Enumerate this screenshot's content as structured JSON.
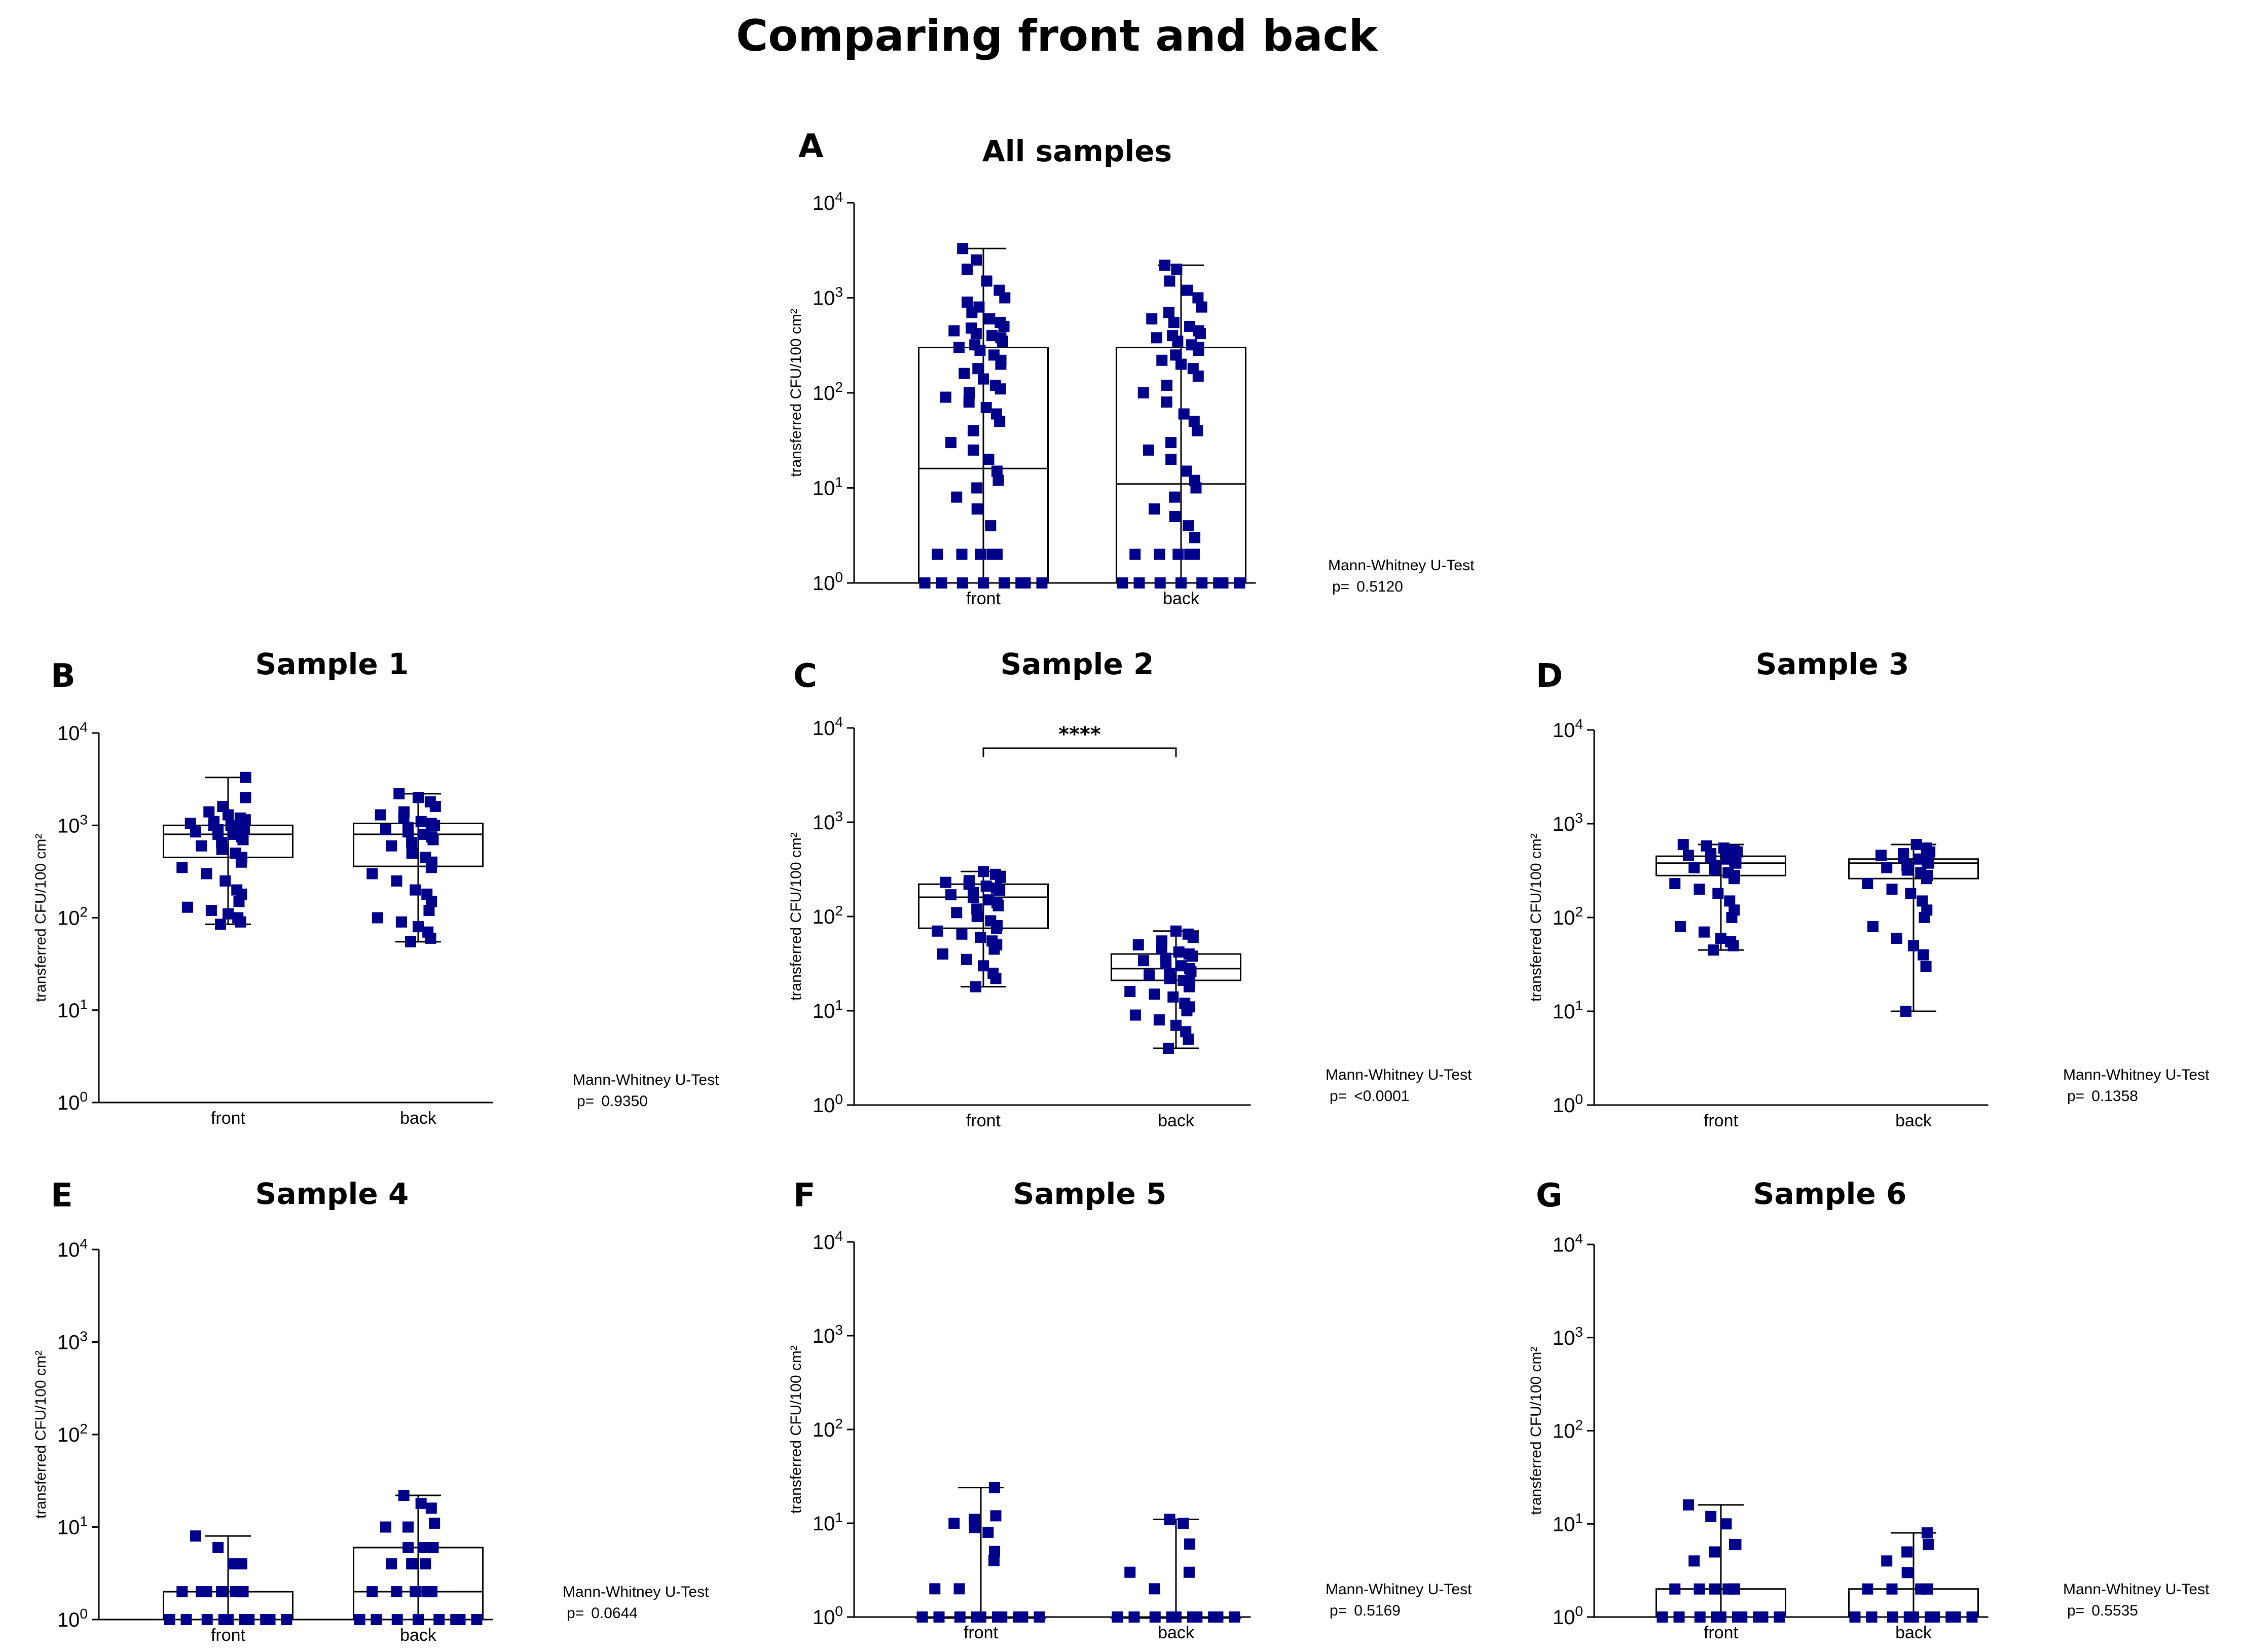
{
  "figure_title": "Comparing front and back",
  "axis_label": "transferred CFU/100 cm²",
  "y_ticks": [
    {
      "base": "10",
      "exp": "0"
    },
    {
      "base": "10",
      "exp": "1"
    },
    {
      "base": "10",
      "exp": "2"
    },
    {
      "base": "10",
      "exp": "3"
    },
    {
      "base": "10",
      "exp": "4"
    }
  ],
  "colors": {
    "points": "#00008B",
    "box": "#000000",
    "text": "#000000"
  },
  "chart_data": [
    {
      "panel": "A",
      "title": "All samples",
      "type": "box",
      "yscale": "log",
      "ylim": [
        1,
        10000
      ],
      "categories": [
        "front",
        "back"
      ],
      "series": [
        {
          "name": "front",
          "box": {
            "min": 1,
            "q1": 1,
            "median": 16,
            "q3": 300,
            "max": 3300
          },
          "points": [
            1,
            1,
            1,
            1,
            1,
            1,
            1,
            1,
            2,
            2,
            2,
            2,
            2,
            2,
            4,
            6,
            8,
            10,
            12,
            15,
            20,
            25,
            30,
            40,
            50,
            60,
            70,
            80,
            90,
            100,
            110,
            120,
            140,
            160,
            180,
            200,
            220,
            250,
            280,
            300,
            320,
            350,
            380,
            400,
            420,
            450,
            480,
            500,
            550,
            600,
            700,
            800,
            900,
            1000,
            1200,
            1500,
            2000,
            2500,
            3300
          ]
        },
        {
          "name": "back",
          "box": {
            "min": 1,
            "q1": 1,
            "median": 11,
            "q3": 300,
            "max": 2200
          },
          "points": [
            1,
            1,
            1,
            1,
            1,
            1,
            1,
            1,
            2,
            2,
            2,
            2,
            2,
            3,
            4,
            5,
            6,
            8,
            10,
            12,
            15,
            20,
            25,
            30,
            40,
            50,
            60,
            80,
            100,
            120,
            150,
            180,
            200,
            220,
            250,
            280,
            300,
            320,
            350,
            380,
            400,
            420,
            450,
            500,
            550,
            600,
            700,
            800,
            1000,
            1200,
            1500,
            2000,
            2200
          ]
        }
      ],
      "annotation": {
        "test": "Mann-Whitney U-Test",
        "p_label": "p=",
        "p_value": "0.5120"
      }
    },
    {
      "panel": "B",
      "title": "Sample 1",
      "type": "box",
      "yscale": "log",
      "ylim": [
        1,
        10000
      ],
      "categories": [
        "front",
        "back"
      ],
      "series": [
        {
          "name": "front",
          "box": {
            "min": 85,
            "q1": 450,
            "median": 800,
            "q3": 1000,
            "max": 3300
          },
          "points": [
            85,
            90,
            100,
            110,
            120,
            130,
            150,
            180,
            200,
            250,
            300,
            350,
            400,
            450,
            500,
            550,
            600,
            650,
            700,
            750,
            800,
            800,
            850,
            900,
            900,
            950,
            1000,
            1000,
            1050,
            1100,
            1150,
            1200,
            1300,
            1400,
            1600,
            2000,
            3300
          ]
        },
        {
          "name": "back",
          "box": {
            "min": 55,
            "q1": 360,
            "median": 800,
            "q3": 1050,
            "max": 2200
          },
          "points": [
            55,
            60,
            70,
            80,
            90,
            100,
            120,
            150,
            180,
            200,
            250,
            300,
            350,
            400,
            450,
            500,
            600,
            650,
            700,
            750,
            800,
            850,
            900,
            950,
            1000,
            1050,
            1100,
            1200,
            1300,
            1400,
            1600,
            1800,
            2000,
            2200
          ]
        }
      ],
      "annotation": {
        "test": "Mann-Whitney U-Test",
        "p_label": "p=",
        "p_value": "0.9350"
      }
    },
    {
      "panel": "C",
      "title": "Sample 2",
      "type": "box",
      "yscale": "log",
      "ylim": [
        1,
        10000
      ],
      "categories": [
        "front",
        "back"
      ],
      "series": [
        {
          "name": "front",
          "box": {
            "min": 18,
            "q1": 75,
            "median": 160,
            "q3": 220,
            "max": 300
          },
          "points": [
            18,
            22,
            25,
            30,
            35,
            40,
            45,
            50,
            55,
            60,
            65,
            70,
            75,
            80,
            90,
            100,
            110,
            120,
            130,
            140,
            150,
            160,
            170,
            180,
            190,
            200,
            210,
            220,
            230,
            240,
            260,
            280,
            300
          ]
        },
        {
          "name": "back",
          "box": {
            "min": 4,
            "q1": 21,
            "median": 28,
            "q3": 40,
            "max": 70
          },
          "points": [
            4,
            5,
            6,
            7,
            8,
            9,
            10,
            11,
            12,
            14,
            15,
            16,
            18,
            20,
            21,
            22,
            24,
            25,
            26,
            28,
            30,
            32,
            34,
            36,
            38,
            40,
            42,
            45,
            50,
            55,
            60,
            65,
            70
          ]
        }
      ],
      "significance": "****",
      "annotation": {
        "test": "Mann-Whitney U-Test",
        "p_label": "p=",
        "p_value": "<0.0001"
      }
    },
    {
      "panel": "D",
      "title": "Sample 3",
      "type": "box",
      "yscale": "log",
      "ylim": [
        1,
        10000
      ],
      "categories": [
        "front",
        "back"
      ],
      "series": [
        {
          "name": "front",
          "box": {
            "min": 45,
            "q1": 280,
            "median": 380,
            "q3": 450,
            "max": 600
          },
          "points": [
            45,
            50,
            55,
            60,
            70,
            80,
            100,
            120,
            150,
            180,
            200,
            230,
            260,
            280,
            300,
            320,
            340,
            360,
            380,
            400,
            420,
            440,
            460,
            480,
            500,
            520,
            550,
            580,
            600
          ]
        },
        {
          "name": "back",
          "box": {
            "min": 10,
            "q1": 260,
            "median": 380,
            "q3": 420,
            "max": 600
          },
          "points": [
            10,
            30,
            40,
            50,
            60,
            80,
            100,
            120,
            150,
            180,
            200,
            230,
            260,
            280,
            300,
            320,
            340,
            360,
            380,
            400,
            420,
            440,
            460,
            480,
            500,
            550,
            600
          ]
        }
      ],
      "annotation": {
        "test": "Mann-Whitney U-Test",
        "p_label": "p=",
        "p_value": "0.1358"
      }
    },
    {
      "panel": "E",
      "title": "Sample 4",
      "type": "box",
      "yscale": "log",
      "ylim": [
        1,
        10000
      ],
      "categories": [
        "front",
        "back"
      ],
      "series": [
        {
          "name": "front",
          "box": {
            "min": 1,
            "q1": 1,
            "median": 1,
            "q3": 2,
            "max": 8
          },
          "points": [
            1,
            1,
            1,
            1,
            1,
            1,
            1,
            1,
            1,
            1,
            2,
            2,
            2,
            2,
            2,
            2,
            2,
            2,
            2,
            4,
            4,
            6,
            8
          ]
        },
        {
          "name": "back",
          "box": {
            "min": 1,
            "q1": 1,
            "median": 2,
            "q3": 6,
            "max": 22
          },
          "points": [
            1,
            1,
            1,
            1,
            1,
            1,
            1,
            1,
            2,
            2,
            2,
            2,
            2,
            2,
            4,
            4,
            4,
            4,
            6,
            6,
            6,
            6,
            10,
            10,
            11,
            16,
            18,
            22
          ]
        }
      ],
      "annotation": {
        "test": "Mann-Whitney U-Test",
        "p_label": "p=",
        "p_value": "0.0644"
      }
    },
    {
      "panel": "F",
      "title": "Sample 5",
      "type": "box",
      "yscale": "log",
      "ylim": [
        1,
        10000
      ],
      "categories": [
        "front",
        "back"
      ],
      "series": [
        {
          "name": "front",
          "box": {
            "min": 1,
            "q1": 1,
            "median": 1,
            "q3": 1,
            "max": 24
          },
          "points": [
            1,
            1,
            1,
            1,
            1,
            1,
            1,
            1,
            1,
            1,
            2,
            2,
            4,
            5,
            8,
            9,
            10,
            11,
            12,
            24
          ]
        },
        {
          "name": "back",
          "box": {
            "min": 1,
            "q1": 1,
            "median": 1,
            "q3": 1,
            "max": 11
          },
          "points": [
            1,
            1,
            1,
            1,
            1,
            1,
            1,
            1,
            1,
            1,
            2,
            3,
            3,
            6,
            10,
            11
          ]
        }
      ],
      "annotation": {
        "test": "Mann-Whitney U-Test",
        "p_label": "p=",
        "p_value": "0.5169"
      }
    },
    {
      "panel": "G",
      "title": "Sample 6",
      "type": "box",
      "yscale": "log",
      "ylim": [
        1,
        10000
      ],
      "categories": [
        "front",
        "back"
      ],
      "series": [
        {
          "name": "front",
          "box": {
            "min": 1,
            "q1": 1,
            "median": 1,
            "q3": 2,
            "max": 16
          },
          "points": [
            1,
            1,
            1,
            1,
            1,
            1,
            1,
            1,
            1,
            1,
            2,
            2,
            2,
            2,
            2,
            2,
            4,
            5,
            6,
            6,
            10,
            12,
            16
          ]
        },
        {
          "name": "back",
          "box": {
            "min": 1,
            "q1": 1,
            "median": 1,
            "q3": 2,
            "max": 8
          },
          "points": [
            1,
            1,
            1,
            1,
            1,
            1,
            1,
            1,
            1,
            1,
            2,
            2,
            2,
            2,
            2,
            3,
            4,
            5,
            6,
            8
          ]
        }
      ],
      "annotation": {
        "test": "Mann-Whitney U-Test",
        "p_label": "p=",
        "p_value": "0.5535"
      }
    }
  ]
}
